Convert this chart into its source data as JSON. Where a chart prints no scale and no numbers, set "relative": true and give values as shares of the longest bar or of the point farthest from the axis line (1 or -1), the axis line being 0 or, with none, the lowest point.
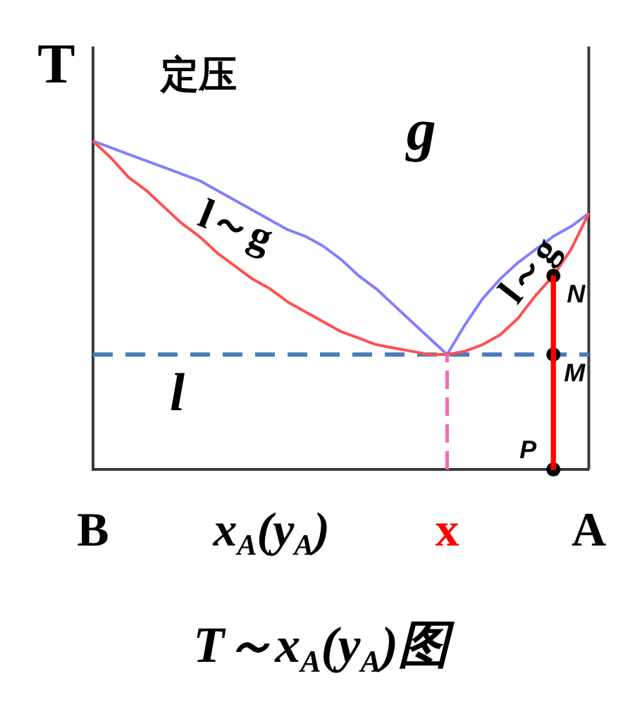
{
  "chart_data": {
    "type": "line",
    "title": "T～x$_{A}$(y$_{A}$)图",
    "xlabel": "x$_{A}$(y$_{A}$)",
    "ylabel": "T",
    "relative": true,
    "categories": [
      "B",
      null,
      null,
      null,
      null,
      null,
      null,
      null,
      null,
      null,
      null,
      null,
      null,
      null,
      null,
      null,
      null,
      null,
      null,
      null,
      "x",
      null,
      null,
      null,
      null,
      null,
      null,
      null,
      "A"
    ],
    "marker": "none",
    "series": [
      {
        "type": "line",
        "color": "#8080ff",
        "values": [
          1,
          0.98,
          0.96,
          0.94,
          0.92,
          0.9,
          0.88,
          0.85,
          0.82,
          0.79,
          0.76,
          0.73,
          0.71,
          0.68,
          0.64,
          0.59,
          0.55,
          0.5,
          0.45,
          0.4,
          0.35,
          0.44,
          0.52,
          0.58,
          0.63,
          0.67,
          0.71,
          0.74,
          0.78
        ]
      },
      {
        "type": "line",
        "color": "#ff5050",
        "values": [
          1,
          0.95,
          0.89,
          0.85,
          0.8,
          0.75,
          0.71,
          0.66,
          0.62,
          0.58,
          0.55,
          0.51,
          0.48,
          0.45,
          0.42,
          0.4,
          0.38,
          0.37,
          0.36,
          0.35,
          0.35,
          0.36,
          0.38,
          0.41,
          0.46,
          0.53,
          0.59,
          0.67,
          0.78
        ]
      },
      {
        "type": "line",
        "color": "#ff66b2",
        "line_style": "dashed",
        "x": [
          "x",
          "x"
        ],
        "values": [
          0,
          0.35
        ]
      },
      {
        "type": "bar",
        "color": "#ff0000",
        "values": [
          null,
          null,
          null,
          null,
          null,
          null,
          null,
          null,
          null,
          null,
          null,
          null,
          null,
          null,
          null,
          null,
          null,
          null,
          null,
          null,
          null,
          null,
          null,
          null,
          null,
          null,
          0.59,
          null,
          null
        ]
      },
      {
        "type": "scatter",
        "name": "N",
        "color": "#000000",
        "marker": "circle",
        "values": [
          null,
          null,
          null,
          null,
          null,
          null,
          null,
          null,
          null,
          null,
          null,
          null,
          null,
          null,
          null,
          null,
          null,
          null,
          null,
          null,
          null,
          null,
          null,
          null,
          null,
          null,
          0.59,
          null,
          null
        ]
      },
      {
        "type": "scatter",
        "name": "M",
        "color": "#000000",
        "marker": "circle",
        "values": [
          null,
          null,
          null,
          null,
          null,
          null,
          null,
          null,
          null,
          null,
          null,
          null,
          null,
          null,
          null,
          null,
          null,
          null,
          null,
          null,
          null,
          null,
          null,
          null,
          null,
          null,
          0.35,
          null,
          null
        ]
      },
      {
        "type": "scatter",
        "name": "P",
        "color": "#000000",
        "marker": "circle",
        "values": [
          null,
          null,
          null,
          null,
          null,
          null,
          null,
          null,
          null,
          null,
          null,
          null,
          null,
          null,
          null,
          null,
          null,
          null,
          null,
          null,
          null,
          null,
          null,
          null,
          null,
          null,
          0,
          null,
          null
        ]
      }
    ],
    "ref_lines": [
      {
        "axis": "y",
        "value": 0.35,
        "color": "#4a7ebb",
        "line_style": "dashed"
      }
    ],
    "annotations": [
      "定压",
      "g",
      "l～g",
      "l～g",
      "l"
    ]
  }
}
